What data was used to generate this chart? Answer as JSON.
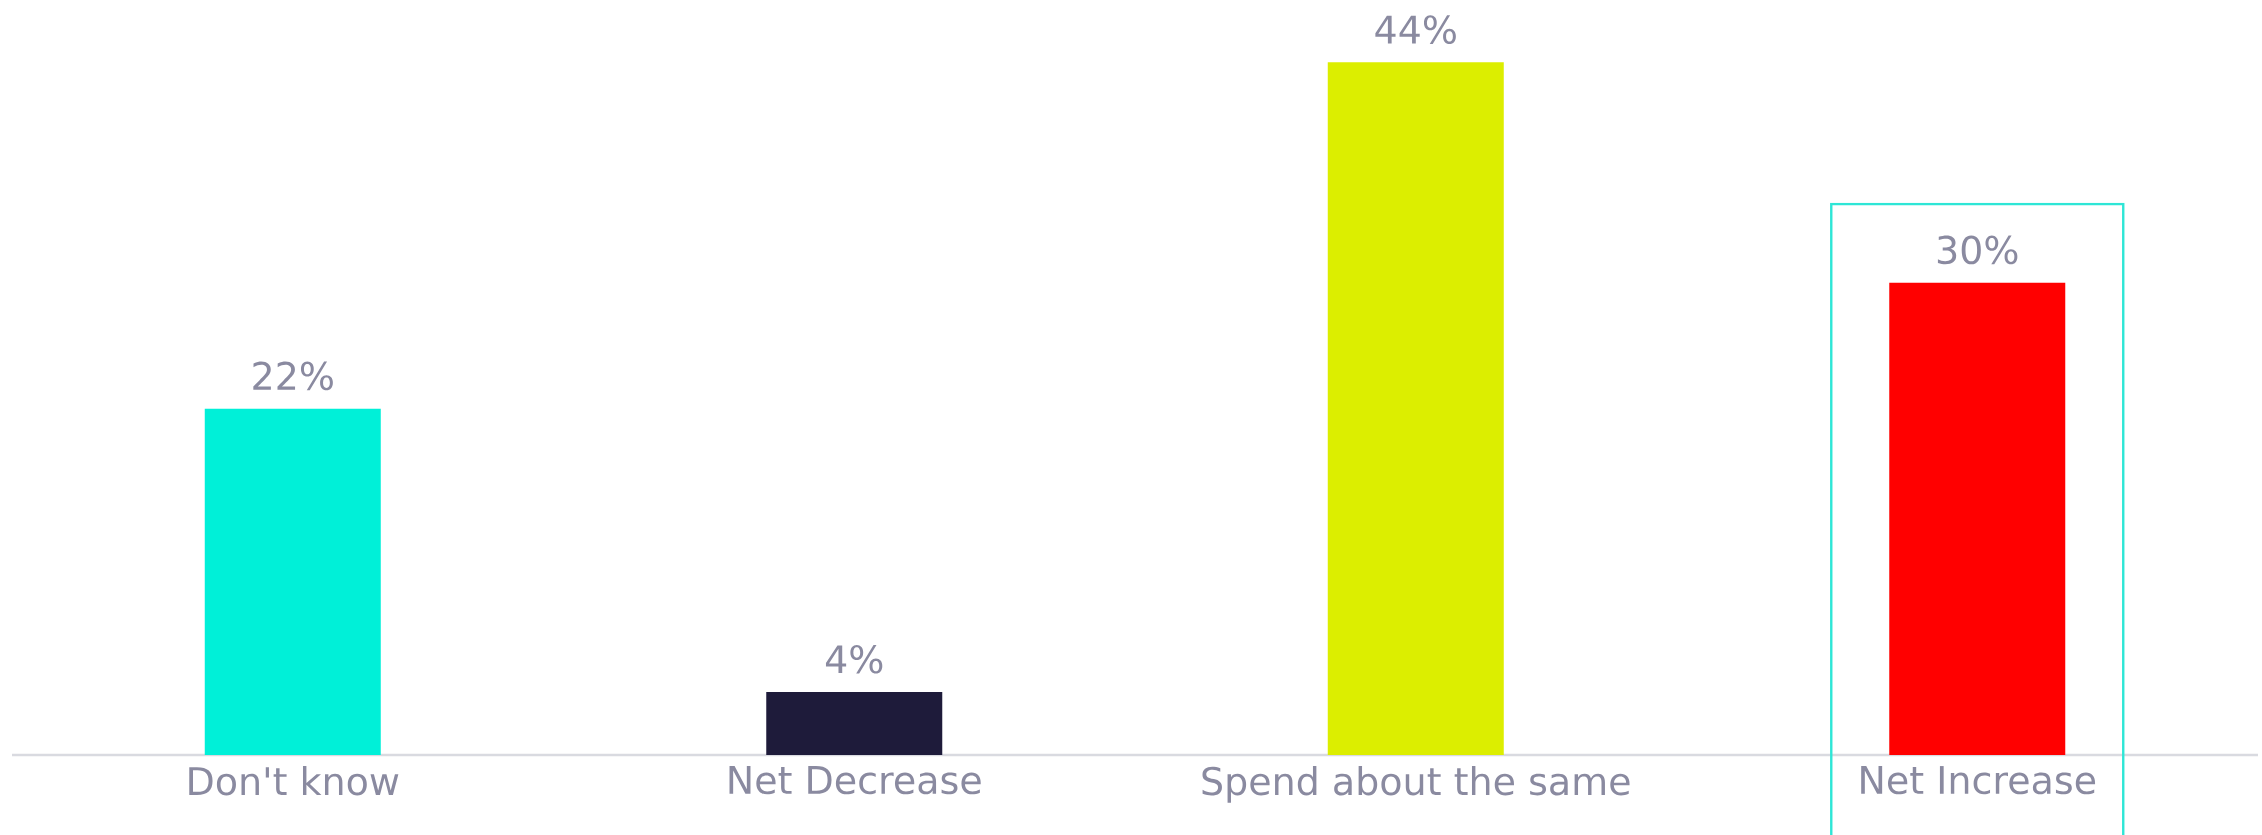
{
  "chart_data": {
    "type": "bar",
    "categories": [
      "Don't know",
      "Net Decrease",
      "Spend about the same",
      "Net Increase"
    ],
    "values": [
      22,
      4,
      44,
      30
    ],
    "colors": [
      "#00f0d8",
      "#1e1b3a",
      "#dcee00",
      "#ff0000"
    ],
    "value_labels": [
      "22%",
      "4%",
      "44%",
      "30%"
    ],
    "tick_labels": "x"
  }
}
